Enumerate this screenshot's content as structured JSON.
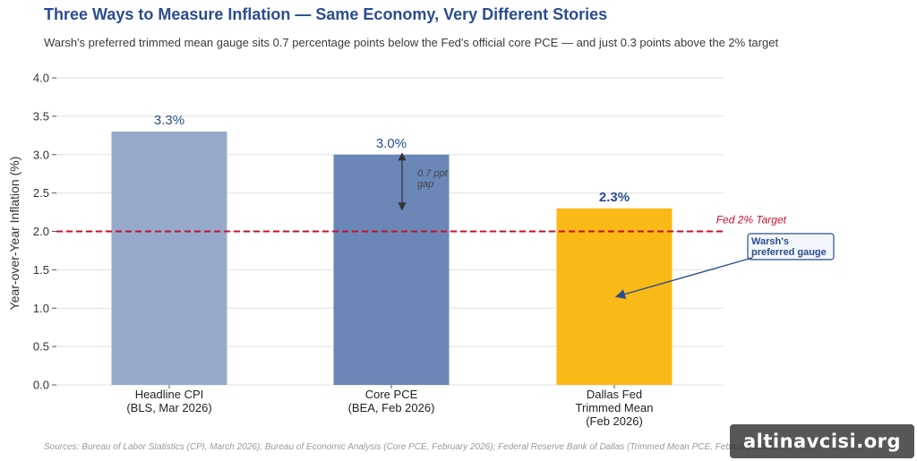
{
  "title": "Three Ways to Measure Inflation — Same Economy, Very Different Stories",
  "subtitle": "Warsh's preferred trimmed mean gauge sits 0.7 percentage points below the Fed's official core PCE — and just 0.3 points above the 2% target",
  "source": "Sources: Bureau of Labor Statistics (CPI, March 2026); Bureau of Economic Analysis (Core PCE, February 2026); Federal Reserve Bank of Dallas (Trimmed Mean PCE, February 2026)",
  "watermark": "altinavcisi.org",
  "colors": {
    "bar1": "#96aacc",
    "bar2": "#6a87b8",
    "bar3": "#f9b916",
    "target_line": "#c8102e",
    "accent": "#2b4d8e",
    "grid": "#e0e0e0"
  },
  "chart_data": {
    "type": "bar",
    "categories": [
      [
        "Headline CPI",
        "(BLS, Mar 2026)"
      ],
      [
        "Core PCE",
        "(BEA, Feb 2026)"
      ],
      [
        "Dallas Fed",
        "Trimmed Mean",
        "(Feb 2026)"
      ]
    ],
    "values": [
      3.3,
      3.0,
      2.3
    ],
    "value_labels": [
      "3.3%",
      "3.0%",
      "2.3%"
    ],
    "ylabel": "Year-over-Year Inflation (%)",
    "ylim": [
      0,
      4.0
    ],
    "yticks": [
      "0.0",
      "0.5",
      "1.0",
      "1.5",
      "2.0",
      "2.5",
      "3.0",
      "3.5",
      "4.0"
    ],
    "grid": true,
    "reference_line": {
      "value": 2.0,
      "label": "Fed 2% Target",
      "style": "dashed"
    },
    "gap_annotation": {
      "from": 3.0,
      "to": 2.3,
      "label_lines": [
        "0.7 ppt",
        "gap"
      ]
    },
    "callout": {
      "label_lines": [
        "Warsh's",
        "preferred gauge"
      ],
      "points_to_category": 2,
      "points_to_value": 1.15
    }
  }
}
